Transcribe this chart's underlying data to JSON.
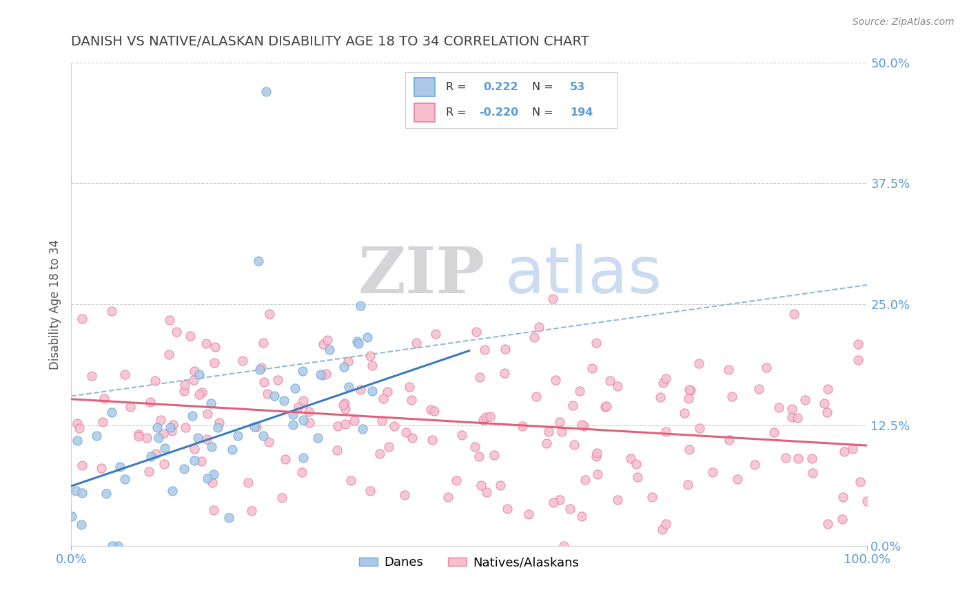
{
  "title": "DANISH VS NATIVE/ALASKAN DISABILITY AGE 18 TO 34 CORRELATION CHART",
  "source": "Source: ZipAtlas.com",
  "xlabel": "",
  "ylabel": "Disability Age 18 to 34",
  "xlim": [
    0,
    1.0
  ],
  "ylim": [
    0,
    0.5
  ],
  "xticks": [
    0.0,
    1.0
  ],
  "xticklabels": [
    "0.0%",
    "100.0%"
  ],
  "yticks": [
    0.0,
    0.125,
    0.25,
    0.375,
    0.5
  ],
  "yticklabels": [
    "0.0%",
    "12.5%",
    "25.0%",
    "37.5%",
    "50.0%"
  ],
  "danes_color": "#adc8e8",
  "danes_edge_color": "#6aaad4",
  "natives_color": "#f5bfce",
  "natives_edge_color": "#e8809e",
  "danes_R": 0.222,
  "danes_N": 53,
  "natives_R": -0.22,
  "natives_N": 194,
  "danes_line_color": "#3a7abf",
  "natives_line_color": "#e0607a",
  "danes_line_intercept": 0.062,
  "danes_line_slope": 0.28,
  "danes_line_xmax": 0.5,
  "natives_line_intercept": 0.152,
  "natives_line_slope": -0.048,
  "dashed_line_intercept": 0.155,
  "dashed_line_slope": 0.115,
  "background_color": "#ffffff",
  "grid_color": "#cccccc",
  "title_color": "#404040",
  "axis_color": "#5b9bd5",
  "legend_label1": "Danes",
  "legend_label2": "Natives/Alaskans"
}
